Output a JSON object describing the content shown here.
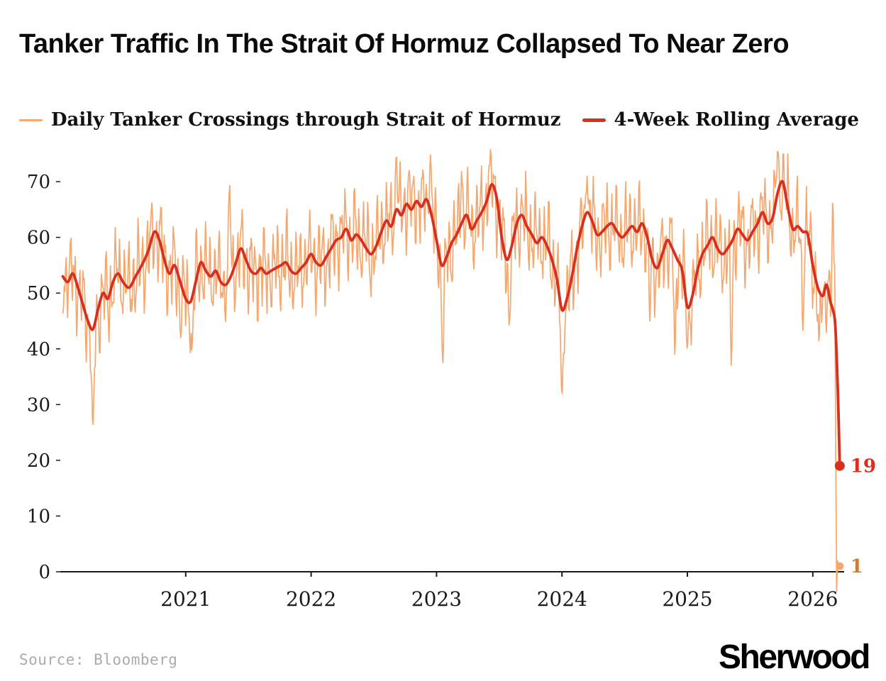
{
  "header": {
    "title": "Tanker Traffic In The Strait Of Hormuz Collapsed To Near Zero"
  },
  "footer": {
    "source": "Source: Bloomberg",
    "brand": "Sherwood"
  },
  "chart_data": {
    "type": "line",
    "title": "Tanker Traffic In The Strait Of Hormuz Collapsed To Near Zero",
    "xlabel": "",
    "ylabel": "",
    "grid": false,
    "legend_position": "top",
    "x_ticks": [
      2021,
      2022,
      2023,
      2024,
      2025,
      2026
    ],
    "y_ticks": [
      0,
      10,
      20,
      30,
      40,
      50,
      60,
      70
    ],
    "x_range": [
      2020.0,
      2026.25
    ],
    "y_range": [
      0,
      76.5
    ],
    "series": [
      {
        "name": "Daily Tanker Crossings through Strait of Hormuz",
        "color": "#F6A76E",
        "width": 1.7,
        "representation": "procedural: rolling average baseline plus short-period oscillation",
        "oscillation": {
          "amplitude": 9.2,
          "periods_years": [
            0.036,
            0.0905,
            0.0185
          ],
          "phases": [
            0.4,
            1.9,
            4.2
          ],
          "weights": [
            0.52,
            0.3,
            0.26
          ],
          "jitter": 2.4,
          "step_years": 0.0055
        },
        "anomalies": [
          [
            2020.26,
            26,
            0.014
          ],
          [
            2020.96,
            42,
            0.01
          ],
          [
            2021.05,
            39.5,
            0.01
          ],
          [
            2021.35,
            69.5,
            0.01
          ],
          [
            2022.68,
            75,
            0.01
          ],
          [
            2022.78,
            72,
            0.01
          ],
          [
            2022.95,
            75,
            0.01
          ],
          [
            2023.05,
            37.5,
            0.012
          ],
          [
            2023.2,
            72,
            0.009
          ],
          [
            2023.42,
            73,
            0.01
          ],
          [
            2023.58,
            44,
            0.01
          ],
          [
            2024.0,
            31.5,
            0.013
          ],
          [
            2024.2,
            71,
            0.01
          ],
          [
            2024.7,
            45,
            0.01
          ],
          [
            2024.9,
            38.5,
            0.01
          ],
          [
            2025.0,
            40,
            0.01
          ],
          [
            2025.35,
            37,
            0.011
          ],
          [
            2025.72,
            76,
            0.01
          ],
          [
            2025.92,
            43,
            0.01
          ],
          [
            2026.05,
            41,
            0.01
          ],
          [
            2026.16,
            67,
            0.008
          ]
        ],
        "tail": [
          [
            2026.175,
            55
          ],
          [
            2026.183,
            20
          ],
          [
            2026.19,
            -3.5
          ],
          [
            2026.198,
            2
          ],
          [
            2026.206,
            0.5
          ],
          [
            2026.215,
            1
          ]
        ],
        "end": {
          "x": 2026.215,
          "value": 1,
          "label": "1",
          "dot_radius": 5.5,
          "label_color": "#d07a3a"
        }
      },
      {
        "name": "4-Week Rolling Average",
        "color": "#D7301F",
        "width": 3.8,
        "points": [
          [
            2020.02,
            53
          ],
          [
            2020.06,
            52
          ],
          [
            2020.1,
            53.5
          ],
          [
            2020.14,
            51
          ],
          [
            2020.18,
            48
          ],
          [
            2020.22,
            45
          ],
          [
            2020.26,
            43.5
          ],
          [
            2020.3,
            47
          ],
          [
            2020.34,
            50
          ],
          [
            2020.38,
            49
          ],
          [
            2020.42,
            52
          ],
          [
            2020.46,
            53.5
          ],
          [
            2020.5,
            52
          ],
          [
            2020.55,
            51
          ],
          [
            2020.6,
            53
          ],
          [
            2020.65,
            55
          ],
          [
            2020.7,
            57.5
          ],
          [
            2020.75,
            61
          ],
          [
            2020.79,
            59.5
          ],
          [
            2020.83,
            56
          ],
          [
            2020.87,
            53.5
          ],
          [
            2020.91,
            55
          ],
          [
            2020.95,
            52.5
          ],
          [
            2021.0,
            49
          ],
          [
            2021.04,
            48.5
          ],
          [
            2021.08,
            52
          ],
          [
            2021.12,
            55.5
          ],
          [
            2021.16,
            54
          ],
          [
            2021.2,
            53
          ],
          [
            2021.24,
            54
          ],
          [
            2021.28,
            52
          ],
          [
            2021.32,
            51.5
          ],
          [
            2021.36,
            53
          ],
          [
            2021.4,
            55.5
          ],
          [
            2021.44,
            58
          ],
          [
            2021.48,
            56
          ],
          [
            2021.52,
            54
          ],
          [
            2021.56,
            53.5
          ],
          [
            2021.6,
            54.5
          ],
          [
            2021.64,
            53.5
          ],
          [
            2021.68,
            54
          ],
          [
            2021.72,
            54.5
          ],
          [
            2021.76,
            55
          ],
          [
            2021.8,
            55.5
          ],
          [
            2021.84,
            54
          ],
          [
            2021.88,
            53.5
          ],
          [
            2021.92,
            54.5
          ],
          [
            2021.96,
            55.5
          ],
          [
            2022.0,
            57
          ],
          [
            2022.04,
            55.5
          ],
          [
            2022.08,
            55
          ],
          [
            2022.12,
            56.5
          ],
          [
            2022.16,
            58
          ],
          [
            2022.2,
            59.5
          ],
          [
            2022.24,
            60
          ],
          [
            2022.28,
            61.5
          ],
          [
            2022.32,
            59.5
          ],
          [
            2022.36,
            60.5
          ],
          [
            2022.4,
            59.5
          ],
          [
            2022.44,
            58
          ],
          [
            2022.48,
            57
          ],
          [
            2022.52,
            58.5
          ],
          [
            2022.56,
            61
          ],
          [
            2022.6,
            63
          ],
          [
            2022.64,
            62
          ],
          [
            2022.68,
            65
          ],
          [
            2022.72,
            64
          ],
          [
            2022.76,
            66
          ],
          [
            2022.8,
            65
          ],
          [
            2022.84,
            66.5
          ],
          [
            2022.88,
            65.5
          ],
          [
            2022.92,
            66.8
          ],
          [
            2022.96,
            64
          ],
          [
            2023.0,
            59.5
          ],
          [
            2023.04,
            55
          ],
          [
            2023.08,
            56.5
          ],
          [
            2023.12,
            59
          ],
          [
            2023.16,
            60.5
          ],
          [
            2023.2,
            62.5
          ],
          [
            2023.24,
            64
          ],
          [
            2023.28,
            61.5
          ],
          [
            2023.32,
            63
          ],
          [
            2023.36,
            64.5
          ],
          [
            2023.4,
            66.5
          ],
          [
            2023.44,
            69.5
          ],
          [
            2023.48,
            67
          ],
          [
            2023.52,
            60
          ],
          [
            2023.56,
            56
          ],
          [
            2023.6,
            58.5
          ],
          [
            2023.64,
            62.5
          ],
          [
            2023.68,
            64
          ],
          [
            2023.72,
            62
          ],
          [
            2023.76,
            60.5
          ],
          [
            2023.8,
            59
          ],
          [
            2023.84,
            60
          ],
          [
            2023.88,
            58.5
          ],
          [
            2023.92,
            56
          ],
          [
            2023.96,
            52.5
          ],
          [
            2024.0,
            47
          ],
          [
            2024.04,
            49
          ],
          [
            2024.08,
            53
          ],
          [
            2024.12,
            58
          ],
          [
            2024.16,
            62
          ],
          [
            2024.2,
            64.5
          ],
          [
            2024.24,
            63
          ],
          [
            2024.28,
            60.5
          ],
          [
            2024.32,
            61
          ],
          [
            2024.36,
            62
          ],
          [
            2024.4,
            62.5
          ],
          [
            2024.44,
            61
          ],
          [
            2024.48,
            60
          ],
          [
            2024.52,
            61
          ],
          [
            2024.56,
            62
          ],
          [
            2024.6,
            61
          ],
          [
            2024.64,
            62.5
          ],
          [
            2024.68,
            60
          ],
          [
            2024.72,
            56
          ],
          [
            2024.76,
            54.5
          ],
          [
            2024.8,
            57
          ],
          [
            2024.84,
            59.5
          ],
          [
            2024.88,
            58
          ],
          [
            2024.92,
            56
          ],
          [
            2024.96,
            54
          ],
          [
            2025.0,
            47.5
          ],
          [
            2025.04,
            49.5
          ],
          [
            2025.08,
            54
          ],
          [
            2025.12,
            57
          ],
          [
            2025.16,
            58.5
          ],
          [
            2025.2,
            60
          ],
          [
            2025.24,
            58
          ],
          [
            2025.28,
            57
          ],
          [
            2025.32,
            58
          ],
          [
            2025.36,
            59.5
          ],
          [
            2025.4,
            61.5
          ],
          [
            2025.44,
            60.5
          ],
          [
            2025.48,
            59.5
          ],
          [
            2025.52,
            61
          ],
          [
            2025.56,
            62.5
          ],
          [
            2025.6,
            64.5
          ],
          [
            2025.64,
            62.5
          ],
          [
            2025.68,
            63.5
          ],
          [
            2025.72,
            68
          ],
          [
            2025.76,
            70
          ],
          [
            2025.8,
            65.5
          ],
          [
            2025.84,
            61.5
          ],
          [
            2025.88,
            62
          ],
          [
            2025.92,
            61
          ],
          [
            2025.96,
            60.5
          ],
          [
            2026.0,
            55
          ],
          [
            2026.04,
            51
          ],
          [
            2026.08,
            49.5
          ],
          [
            2026.11,
            51.5
          ],
          [
            2026.14,
            48.5
          ],
          [
            2026.16,
            47
          ],
          [
            2026.18,
            44
          ],
          [
            2026.2,
            32
          ],
          [
            2026.215,
            19
          ]
        ],
        "end": {
          "x": 2026.215,
          "value": 19,
          "label": "19",
          "dot_radius": 7,
          "label_color": "#D7301F"
        }
      }
    ]
  }
}
